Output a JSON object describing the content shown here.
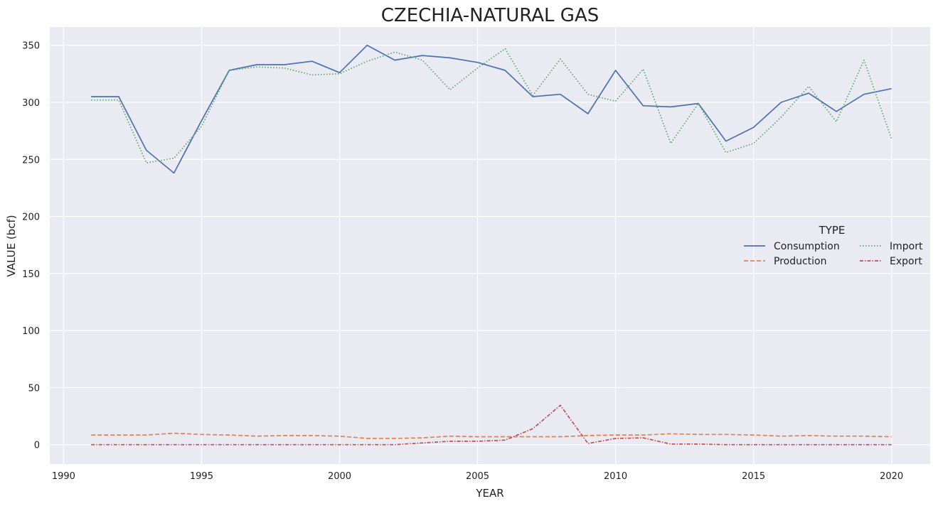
{
  "chart_data": {
    "type": "line",
    "title": "CZECHIA-NATURAL GAS",
    "xlabel": "YEAR",
    "ylabel": "VALUE (bcf)",
    "xlim": [
      1989.5,
      2021.4
    ],
    "ylim": [
      -17,
      366
    ],
    "xticks": [
      1990,
      1995,
      2000,
      2005,
      2010,
      2015,
      2020
    ],
    "yticks": [
      0,
      50,
      100,
      150,
      200,
      250,
      300,
      350
    ],
    "grid": true,
    "background": "#eaeaf2",
    "legend": {
      "title": "TYPE",
      "position": "center-right",
      "columns": 2
    },
    "x": [
      1991,
      1992,
      1993,
      1994,
      1995,
      1996,
      1997,
      1998,
      1999,
      2000,
      2001,
      2002,
      2003,
      2004,
      2005,
      2006,
      2007,
      2008,
      2009,
      2010,
      2011,
      2012,
      2013,
      2014,
      2015,
      2016,
      2017,
      2018,
      2019,
      2020
    ],
    "series": [
      {
        "name": "Consumption",
        "color": "#4c72b0",
        "dash": "solid",
        "values": [
          305,
          305,
          258,
          238,
          284,
          328,
          333,
          333,
          336,
          326,
          350,
          337,
          341,
          339,
          335,
          328,
          305,
          307,
          290,
          328,
          297,
          296,
          299,
          266,
          278,
          300,
          308,
          292,
          307,
          312
        ]
      },
      {
        "name": "Production",
        "color": "#dd8452",
        "dash": "dashed",
        "values": [
          8.5,
          8.5,
          8.5,
          10,
          9,
          8.5,
          7.5,
          8,
          8,
          7.5,
          5.5,
          5.5,
          6,
          7.5,
          7,
          7,
          7,
          7,
          8,
          8.5,
          8.5,
          9.5,
          9,
          9,
          8.5,
          7.5,
          8,
          7.5,
          7.5,
          7
        ]
      },
      {
        "name": "Import",
        "color": "#55a868",
        "dash": "dotted",
        "values": [
          302,
          302,
          247,
          251,
          279,
          328,
          331,
          330,
          324,
          325,
          336,
          344,
          337,
          311,
          330,
          347,
          306,
          338,
          307,
          301,
          329,
          264,
          299,
          256,
          264,
          287,
          314,
          283,
          337,
          268
        ]
      },
      {
        "name": "Export",
        "color": "#c44e52",
        "dash": "dashdot",
        "values": [
          0,
          0,
          0,
          0,
          0,
          0,
          0,
          0,
          0,
          0,
          0,
          0,
          1.5,
          3,
          3,
          4,
          14,
          34.5,
          1,
          5.5,
          6,
          0.5,
          0.5,
          0,
          0,
          0,
          0,
          0,
          0,
          0
        ]
      }
    ]
  }
}
